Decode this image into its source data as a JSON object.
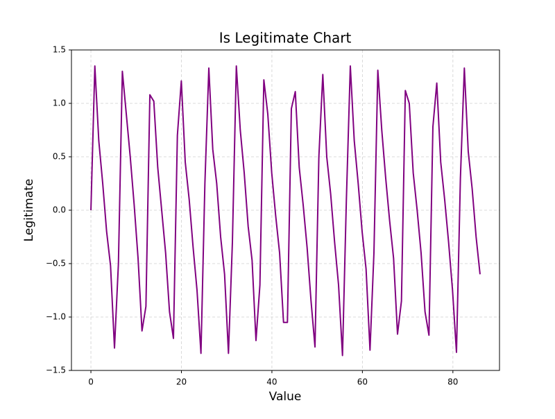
{
  "chart_data": {
    "type": "line",
    "title": "Is Legitimate Chart",
    "x_label": "Value",
    "y_label": "Legitimate",
    "color": "#800080",
    "grid": true,
    "x": [
      0,
      0.87,
      1.74,
      2.61,
      3.47,
      4.34,
      5.21,
      6.08,
      6.95,
      7.82,
      8.69,
      9.56,
      10.42,
      11.29,
      12.16,
      13.03,
      13.9,
      14.77,
      15.64,
      16.51,
      17.37,
      18.24,
      19.11,
      19.98,
      20.85,
      21.72,
      22.59,
      23.45,
      24.32,
      25.19,
      26.06,
      26.93,
      27.8,
      28.67,
      29.54,
      30.4,
      31.27,
      32.14,
      33.01,
      33.88,
      34.75,
      35.62,
      36.48,
      37.35,
      38.22,
      39.09,
      39.96,
      40.83,
      41.7,
      42.57,
      43.43,
      44.3,
      45.17,
      46.04,
      46.91,
      47.78,
      48.65,
      49.52,
      50.38,
      51.25,
      52.12,
      52.99,
      53.86,
      54.73,
      55.6,
      56.46,
      57.33,
      58.2,
      59.07,
      59.94,
      60.81,
      61.68,
      62.55,
      63.41,
      64.28,
      65.15,
      66.02,
      66.89,
      67.76,
      68.63,
      69.49,
      70.36,
      71.23,
      72.1,
      72.97,
      73.84,
      74.71,
      75.58,
      76.44,
      77.31,
      78.18,
      79.05,
      79.92,
      80.79,
      81.66,
      82.53,
      83.39,
      84.26,
      85.13,
      86
    ],
    "values": [
      0,
      1.35,
      0.65,
      0.25,
      -0.2,
      -0.52,
      -1.29,
      -0.5,
      1.3,
      0.9,
      0.5,
      0.05,
      -0.45,
      -1.13,
      -0.9,
      1.08,
      1.02,
      0.4,
      0.0,
      -0.4,
      -0.95,
      -1.2,
      0.7,
      1.21,
      0.45,
      0.1,
      -0.35,
      -0.75,
      -1.34,
      0.25,
      1.33,
      0.57,
      0.25,
      -0.25,
      -0.6,
      -1.34,
      -0.3,
      1.35,
      0.75,
      0.35,
      -0.15,
      -0.47,
      -1.22,
      -0.7,
      1.22,
      0.9,
      0.35,
      -0.05,
      -0.4,
      -1.05,
      -1.05,
      0.95,
      1.11,
      0.4,
      0.05,
      -0.35,
      -0.85,
      -1.28,
      0.5,
      1.27,
      0.5,
      0.15,
      -0.3,
      -0.7,
      -1.36,
      0.1,
      1.35,
      0.65,
      0.25,
      -0.2,
      -0.55,
      -1.31,
      -0.4,
      1.31,
      0.75,
      0.3,
      -0.1,
      -0.45,
      -1.16,
      -0.85,
      1.12,
      1.0,
      0.35,
      0.0,
      -0.4,
      -0.95,
      -1.17,
      0.78,
      1.19,
      0.45,
      0.1,
      -0.3,
      -0.75,
      -1.33,
      0.3,
      1.33,
      0.55,
      0.2,
      -0.25,
      -0.6
    ],
    "xlim": [
      -4.3,
      90.3
    ],
    "ylim": [
      -1.5,
      1.5
    ],
    "xticks": [
      0,
      20,
      40,
      60,
      80
    ],
    "yticks": [
      {
        "value": -1.5,
        "label": "−1.5"
      },
      {
        "value": -1,
        "label": "−1.0"
      },
      {
        "value": -0.5,
        "label": "−0.5"
      },
      {
        "value": 0,
        "label": "0.0"
      },
      0.5,
      {
        "value": 1,
        "label": "1.0"
      },
      1.5
    ]
  }
}
